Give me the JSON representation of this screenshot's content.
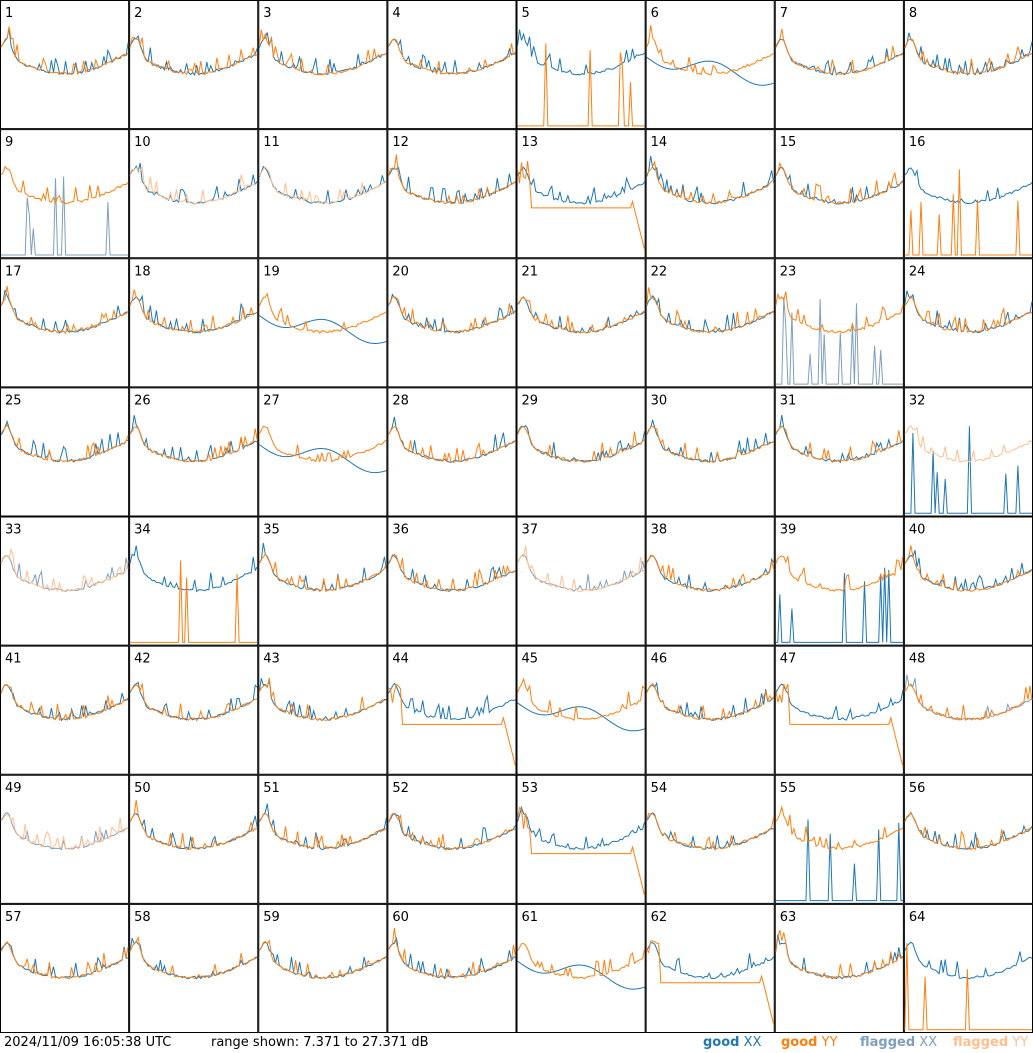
{
  "chart_data": {
    "type": "line",
    "grid": "8x8 small multiples",
    "panels": [
      "1",
      "2",
      "3",
      "4",
      "5",
      "6",
      "7",
      "8",
      "9",
      "10",
      "11",
      "12",
      "13",
      "14",
      "15",
      "16",
      "17",
      "18",
      "19",
      "20",
      "21",
      "22",
      "23",
      "24",
      "25",
      "26",
      "27",
      "28",
      "29",
      "30",
      "31",
      "32",
      "33",
      "34",
      "35",
      "36",
      "37",
      "38",
      "39",
      "40",
      "41",
      "42",
      "43",
      "44",
      "45",
      "46",
      "47",
      "48",
      "49",
      "50",
      "51",
      "52",
      "53",
      "54",
      "55",
      "56",
      "57",
      "58",
      "59",
      "60",
      "61",
      "62",
      "63",
      "64"
    ],
    "ylim_db": [
      7.371,
      27.371
    ],
    "series": [
      {
        "name": "good XX",
        "color": "#1f77b4"
      },
      {
        "name": "good YY",
        "color": "#ff7f0e"
      },
      {
        "name": "flagged XX",
        "color": "#7f9fbf"
      },
      {
        "name": "flagged YY",
        "color": "#ffbf8f"
      }
    ],
    "panel_status": {
      "flagged_xx": [
        "9",
        "23",
        "33",
        "37",
        "48",
        "49"
      ],
      "flagged_yy": [
        "10",
        "11",
        "32",
        "33",
        "37",
        "49"
      ]
    }
  },
  "footer": {
    "timestamp": "2024/11/09 16:05:38 UTC",
    "range_text": "range shown: 7.371 to 27.371 dB",
    "legend": {
      "good_word": "good",
      "xx": "XX",
      "yy": "YY",
      "flagged_word": "flagged"
    }
  }
}
